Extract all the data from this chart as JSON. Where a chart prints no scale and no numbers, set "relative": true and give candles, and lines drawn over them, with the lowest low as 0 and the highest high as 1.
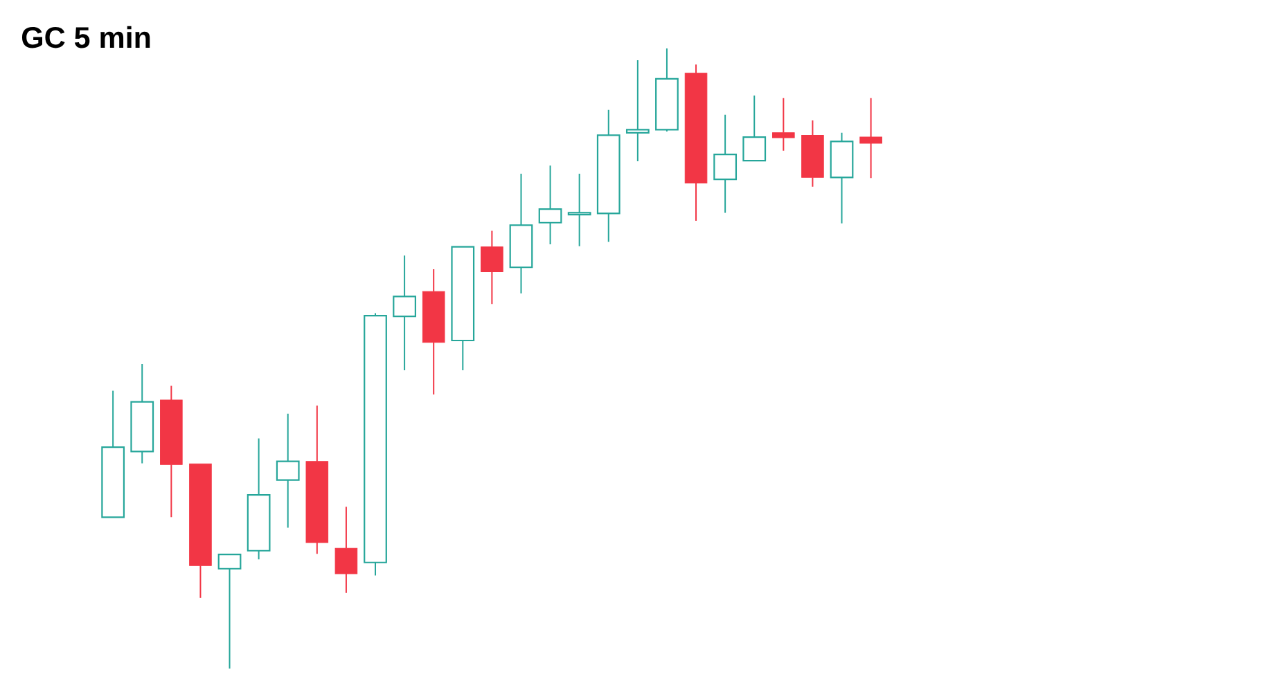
{
  "chart_data": {
    "type": "candlestick",
    "title": "GC 5 min",
    "relative": true,
    "categories": [
      null,
      null,
      null,
      null,
      null,
      null,
      null,
      null,
      null,
      null,
      null,
      null,
      null,
      null,
      null,
      null,
      null,
      null,
      null,
      null,
      null,
      null,
      null,
      null,
      null,
      null,
      null
    ],
    "ohlc": [
      [
        0.244,
        0.448,
        0.244,
        0.357
      ],
      [
        0.35,
        0.491,
        0.331,
        0.43
      ],
      [
        0.433,
        0.456,
        0.244,
        0.329
      ],
      [
        0.33,
        0.33,
        0.114,
        0.166
      ],
      [
        0.161,
        0.184,
        0.0,
        0.184
      ],
      [
        0.19,
        0.371,
        0.176,
        0.28
      ],
      [
        0.304,
        0.411,
        0.227,
        0.334
      ],
      [
        0.334,
        0.424,
        0.185,
        0.203
      ],
      [
        0.194,
        0.261,
        0.122,
        0.153
      ],
      [
        0.171,
        0.573,
        0.15,
        0.569
      ],
      [
        0.568,
        0.666,
        0.481,
        0.6
      ],
      [
        0.608,
        0.644,
        0.442,
        0.526
      ],
      [
        0.529,
        0.68,
        0.481,
        0.68
      ],
      [
        0.68,
        0.706,
        0.588,
        0.64
      ],
      [
        0.647,
        0.798,
        0.605,
        0.715
      ],
      [
        0.719,
        0.811,
        0.684,
        0.741
      ],
      [
        0.732,
        0.798,
        0.681,
        0.735
      ],
      [
        0.734,
        0.901,
        0.688,
        0.86
      ],
      [
        0.864,
        0.981,
        0.818,
        0.869
      ],
      [
        0.869,
        1.0,
        0.866,
        0.951
      ],
      [
        0.96,
        0.974,
        0.722,
        0.783
      ],
      [
        0.789,
        0.893,
        0.735,
        0.829
      ],
      [
        0.819,
        0.924,
        0.819,
        0.857
      ],
      [
        0.864,
        0.92,
        0.835,
        0.856
      ],
      [
        0.86,
        0.884,
        0.777,
        0.792
      ],
      [
        0.792,
        0.864,
        0.718,
        0.85
      ],
      [
        0.857,
        0.92,
        0.791,
        0.847
      ]
    ],
    "colors": [
      "#26a69a",
      "#26a69a",
      "#f23645",
      "#f23645",
      "#26a69a",
      "#26a69a",
      "#26a69a",
      "#f23645",
      "#f23645",
      "#26a69a",
      "#26a69a",
      "#f23645",
      "#26a69a",
      "#f23645",
      "#26a69a",
      "#26a69a",
      "#26a69a",
      "#26a69a",
      "#26a69a",
      "#26a69a",
      "#f23645",
      "#26a69a",
      "#26a69a",
      "#f23645",
      "#f23645",
      "#26a69a",
      "#f23645"
    ]
  }
}
